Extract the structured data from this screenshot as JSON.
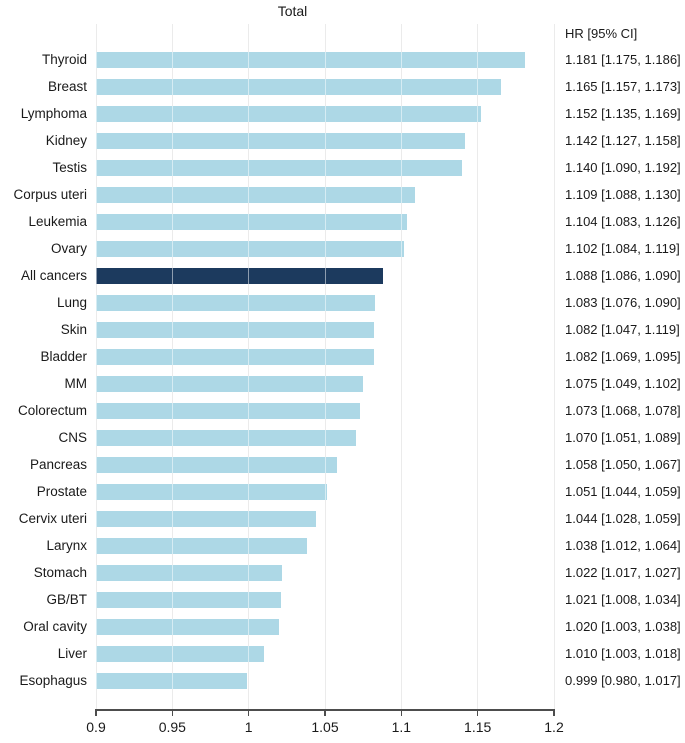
{
  "chart_data": {
    "type": "bar",
    "orientation": "horizontal",
    "title": "Total",
    "column_header": "HR [95% CI]",
    "xlabel": "",
    "ylabel": "",
    "xlim": [
      0.9,
      1.2
    ],
    "x_ticks": [
      0.9,
      0.95,
      1.0,
      1.05,
      1.1,
      1.15,
      1.2
    ],
    "x_tick_labels": [
      "0.9",
      "0.95",
      "1",
      "1.05",
      "1.1",
      "1.15",
      "1.2"
    ],
    "grid": true,
    "legend": false,
    "bar_color": "#add8e6",
    "highlight_color": "#1c3a5e",
    "highlight_category": "All cancers",
    "rows": [
      {
        "label": "Thyroid",
        "hr": 1.181,
        "ci_low": 1.175,
        "ci_high": 1.186,
        "display": "1.181 [1.175, 1.186]"
      },
      {
        "label": "Breast",
        "hr": 1.165,
        "ci_low": 1.157,
        "ci_high": 1.173,
        "display": "1.165 [1.157, 1.173]"
      },
      {
        "label": "Lymphoma",
        "hr": 1.152,
        "ci_low": 1.135,
        "ci_high": 1.169,
        "display": "1.152 [1.135, 1.169]"
      },
      {
        "label": "Kidney",
        "hr": 1.142,
        "ci_low": 1.127,
        "ci_high": 1.158,
        "display": "1.142 [1.127, 1.158]"
      },
      {
        "label": "Testis",
        "hr": 1.14,
        "ci_low": 1.09,
        "ci_high": 1.192,
        "display": "1.140 [1.090, 1.192]"
      },
      {
        "label": "Corpus uteri",
        "hr": 1.109,
        "ci_low": 1.088,
        "ci_high": 1.13,
        "display": "1.109 [1.088, 1.130]"
      },
      {
        "label": "Leukemia",
        "hr": 1.104,
        "ci_low": 1.083,
        "ci_high": 1.126,
        "display": "1.104 [1.083, 1.126]"
      },
      {
        "label": "Ovary",
        "hr": 1.102,
        "ci_low": 1.084,
        "ci_high": 1.119,
        "display": "1.102 [1.084, 1.119]"
      },
      {
        "label": "All cancers",
        "hr": 1.088,
        "ci_low": 1.086,
        "ci_high": 1.09,
        "display": "1.088 [1.086, 1.090]"
      },
      {
        "label": "Lung",
        "hr": 1.083,
        "ci_low": 1.076,
        "ci_high": 1.09,
        "display": "1.083 [1.076, 1.090]"
      },
      {
        "label": "Skin",
        "hr": 1.082,
        "ci_low": 1.047,
        "ci_high": 1.119,
        "display": "1.082 [1.047, 1.119]"
      },
      {
        "label": "Bladder",
        "hr": 1.082,
        "ci_low": 1.069,
        "ci_high": 1.095,
        "display": "1.082 [1.069, 1.095]"
      },
      {
        "label": "MM",
        "hr": 1.075,
        "ci_low": 1.049,
        "ci_high": 1.102,
        "display": "1.075 [1.049, 1.102]"
      },
      {
        "label": "Colorectum",
        "hr": 1.073,
        "ci_low": 1.068,
        "ci_high": 1.078,
        "display": "1.073 [1.068, 1.078]"
      },
      {
        "label": "CNS",
        "hr": 1.07,
        "ci_low": 1.051,
        "ci_high": 1.089,
        "display": "1.070 [1.051, 1.089]"
      },
      {
        "label": "Pancreas",
        "hr": 1.058,
        "ci_low": 1.05,
        "ci_high": 1.067,
        "display": "1.058 [1.050, 1.067]"
      },
      {
        "label": "Prostate",
        "hr": 1.051,
        "ci_low": 1.044,
        "ci_high": 1.059,
        "display": "1.051 [1.044, 1.059]"
      },
      {
        "label": "Cervix uteri",
        "hr": 1.044,
        "ci_low": 1.028,
        "ci_high": 1.059,
        "display": "1.044 [1.028, 1.059]"
      },
      {
        "label": "Larynx",
        "hr": 1.038,
        "ci_low": 1.012,
        "ci_high": 1.064,
        "display": "1.038 [1.012, 1.064]"
      },
      {
        "label": "Stomach",
        "hr": 1.022,
        "ci_low": 1.017,
        "ci_high": 1.027,
        "display": "1.022 [1.017, 1.027]"
      },
      {
        "label": "GB/BT",
        "hr": 1.021,
        "ci_low": 1.008,
        "ci_high": 1.034,
        "display": "1.021 [1.008, 1.034]"
      },
      {
        "label": "Oral cavity",
        "hr": 1.02,
        "ci_low": 1.003,
        "ci_high": 1.038,
        "display": "1.020 [1.003, 1.038]"
      },
      {
        "label": "Liver",
        "hr": 1.01,
        "ci_low": 1.003,
        "ci_high": 1.018,
        "display": "1.010 [1.003, 1.018]"
      },
      {
        "label": "Esophagus",
        "hr": 0.999,
        "ci_low": 0.98,
        "ci_high": 1.017,
        "display": "0.999 [0.980, 1.017]"
      }
    ]
  }
}
